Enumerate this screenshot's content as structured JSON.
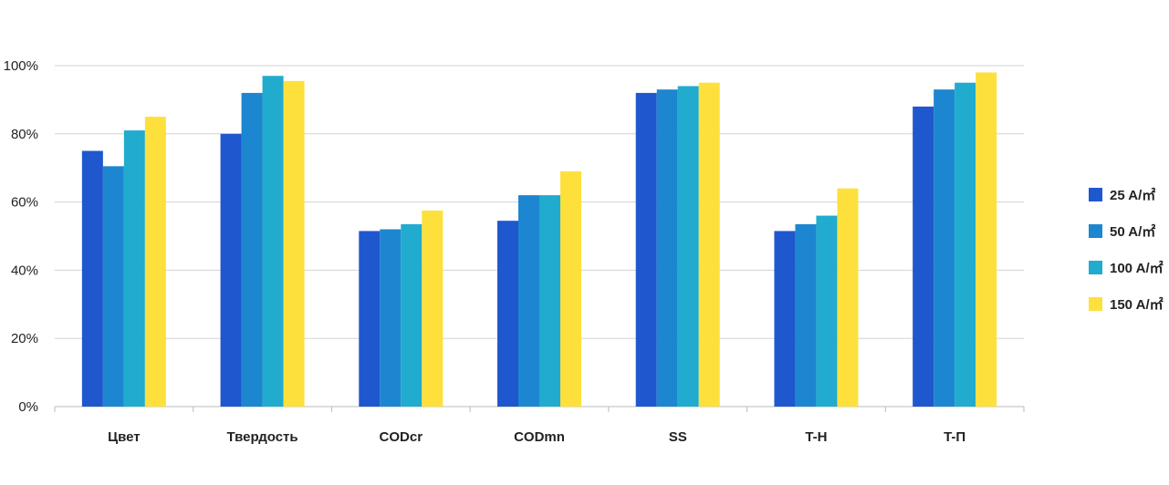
{
  "chart_data": {
    "type": "bar",
    "title": "",
    "xlabel": "",
    "ylabel": "",
    "categories": [
      "Цвет",
      "Твердость",
      "CODcr",
      "CODmn",
      "SS",
      "T-H",
      "T-П"
    ],
    "ylim": [
      0,
      100
    ],
    "yticks": [
      0,
      20,
      40,
      60,
      80,
      100
    ],
    "ytick_labels": [
      "0%",
      "20%",
      "40%",
      "60%",
      "80%",
      "100%"
    ],
    "grid": "horizontal",
    "legend_position": "right",
    "series": [
      {
        "name": "25 A/㎡",
        "color": "#1f57cf",
        "values": [
          75,
          80,
          51.5,
          54.5,
          92,
          51.5,
          88
        ]
      },
      {
        "name": "50 A/㎡",
        "color": "#1d86d1",
        "values": [
          70.5,
          92,
          52,
          62,
          93,
          53.5,
          93
        ]
      },
      {
        "name": "100 A/㎡",
        "color": "#21abce",
        "values": [
          81,
          97,
          53.5,
          62,
          94,
          56,
          95
        ]
      },
      {
        "name": "150 A/㎡",
        "color": "#fee03c",
        "values": [
          85,
          95.5,
          57.5,
          69,
          95,
          64,
          98
        ]
      }
    ]
  }
}
